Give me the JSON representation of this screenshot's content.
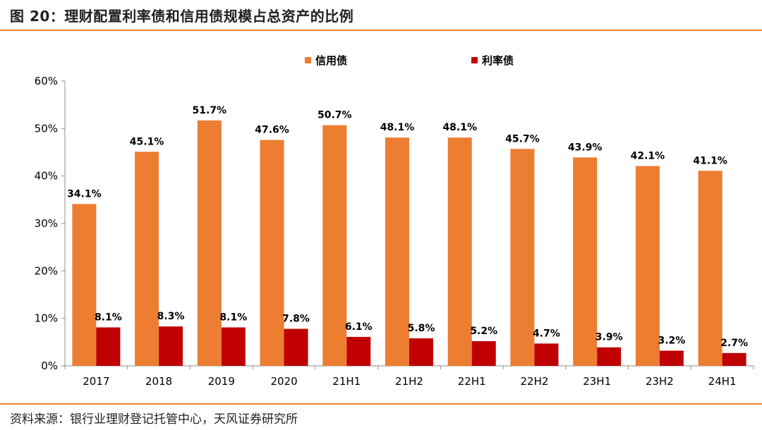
{
  "figure": {
    "title": "图 20：理财配置利率债和信用债规模占总资产的比例",
    "source": "资料来源：银行业理财登记托管中心，天风证券研究所",
    "accent_color": "#e8822a"
  },
  "chart_data": {
    "type": "bar",
    "categories": [
      "2017",
      "2018",
      "2019",
      "2020",
      "21H1",
      "21H2",
      "22H1",
      "22H2",
      "23H1",
      "23H2",
      "24H1"
    ],
    "series": [
      {
        "name": "信用债",
        "color": "#ed7d31",
        "values": [
          34.1,
          45.1,
          51.7,
          47.6,
          50.7,
          48.1,
          48.1,
          45.7,
          43.9,
          42.1,
          41.1
        ],
        "labels": [
          "34.1%",
          "45.1%",
          "51.7%",
          "47.6%",
          "50.7%",
          "48.1%",
          "48.1%",
          "45.7%",
          "43.9%",
          "42.1%",
          "41.1%"
        ]
      },
      {
        "name": "利率债",
        "color": "#c00000",
        "values": [
          8.1,
          8.3,
          8.1,
          7.8,
          6.1,
          5.8,
          5.2,
          4.7,
          3.9,
          3.2,
          2.7
        ],
        "labels": [
          "8.1%",
          "8.3%",
          "8.1%",
          "7.8%",
          "6.1%",
          "5.8%",
          "5.2%",
          "4.7%",
          "3.9%",
          "3.2%",
          "2.7%"
        ]
      }
    ],
    "ylim": [
      0,
      60
    ],
    "yticks": [
      "0%",
      "10%",
      "20%",
      "30%",
      "40%",
      "50%",
      "60%"
    ],
    "grid": false,
    "legend": "top-center"
  }
}
